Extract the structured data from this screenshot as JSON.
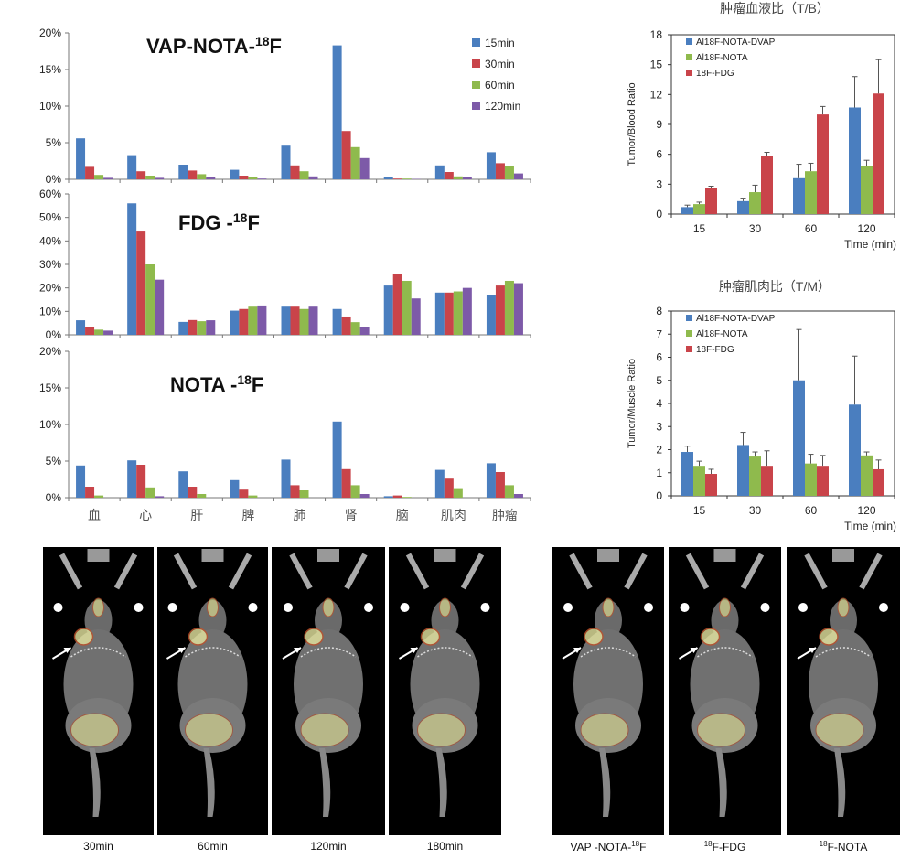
{
  "biodist": {
    "categories": [
      "血",
      "心",
      "肝",
      "脾",
      "肺",
      "肾",
      "脑",
      "肌肉",
      "肿瘤"
    ],
    "legend": [
      "15min",
      "30min",
      "60min",
      "120min"
    ],
    "colors": [
      "#4a7ebf",
      "#c9444a",
      "#8fba4d",
      "#7d5aa8"
    ],
    "charts": [
      {
        "title_main": "VAP-NOTA-",
        "title_sup": "18",
        "title_tail": "F",
        "yticks": [
          "0%",
          "5%",
          "10%",
          "15%",
          "20%"
        ],
        "ymax": 20,
        "series": [
          [
            5.6,
            3.3,
            2.0,
            1.3,
            4.6,
            18.3,
            0.3,
            1.9,
            3.7
          ],
          [
            1.7,
            1.1,
            1.2,
            0.5,
            1.9,
            6.6,
            0.1,
            1.0,
            2.2
          ],
          [
            0.6,
            0.5,
            0.7,
            0.3,
            1.1,
            4.4,
            0.1,
            0.4,
            1.8
          ],
          [
            0.2,
            0.2,
            0.3,
            0.1,
            0.4,
            2.9,
            0.05,
            0.3,
            0.8
          ]
        ]
      },
      {
        "title_main": "FDG -",
        "title_sup": "18",
        "title_tail": "F",
        "yticks": [
          "0%",
          "10%",
          "20%",
          "30%",
          "40%",
          "50%",
          "60%"
        ],
        "ymax": 60,
        "series": [
          [
            6.2,
            56,
            5.5,
            10.3,
            12,
            11,
            21,
            18,
            17
          ],
          [
            3.5,
            44,
            6.3,
            11,
            12,
            7.8,
            26,
            18,
            21
          ],
          [
            2.2,
            30,
            5.8,
            12,
            11,
            5.4,
            23,
            18.5,
            23
          ],
          [
            1.8,
            23.5,
            6.2,
            12.5,
            12,
            3.2,
            15.5,
            20,
            22
          ]
        ]
      },
      {
        "title_main": "NOTA -",
        "title_sup": "18",
        "title_tail": "F",
        "yticks": [
          "0%",
          "5%",
          "10%",
          "15%",
          "20%"
        ],
        "ymax": 20,
        "series": [
          [
            4.4,
            5.1,
            3.6,
            2.4,
            5.2,
            10.4,
            0.2,
            3.8,
            4.7
          ],
          [
            1.5,
            4.5,
            1.5,
            1.1,
            1.7,
            3.9,
            0.3,
            2.6,
            3.5
          ],
          [
            0.3,
            1.4,
            0.5,
            0.3,
            1.0,
            1.7,
            0.1,
            1.3,
            1.7
          ],
          [
            0,
            0.2,
            0,
            0,
            0,
            0.5,
            0,
            0,
            0.5
          ]
        ]
      }
    ]
  },
  "ratios": {
    "legend": [
      "Al18F-NOTA-DVAP",
      "Al18F-NOTA",
      "18F-FDG"
    ],
    "colors": [
      "#4a7ebf",
      "#8fba4d",
      "#c9444a"
    ],
    "categories": [
      "15",
      "30",
      "60",
      "120"
    ],
    "xunit": "Time (min)",
    "tb": {
      "title": "肿瘤血液比（T/B）",
      "ylabel": "Tumor/Blood Ratio",
      "yticks": [
        "0",
        "3",
        "6",
        "9",
        "12",
        "15",
        "18"
      ],
      "ymax": 18,
      "values": [
        [
          0.7,
          1.3,
          3.6,
          10.7
        ],
        [
          1.0,
          2.2,
          4.3,
          4.8
        ],
        [
          2.6,
          5.8,
          10.0,
          12.1
        ]
      ],
      "errors": [
        [
          0.2,
          0.3,
          1.4,
          3.1
        ],
        [
          0.2,
          0.7,
          0.8,
          0.6
        ],
        [
          0.2,
          0.4,
          0.8,
          3.4
        ]
      ]
    },
    "tm": {
      "title": "肿瘤肌肉比（T/M）",
      "ylabel": "Tumor/Muscle Ratio",
      "yticks": [
        "0",
        "1",
        "2",
        "3",
        "4",
        "5",
        "6",
        "7",
        "8"
      ],
      "ymax": 8,
      "values": [
        [
          1.9,
          2.2,
          5.0,
          3.95
        ],
        [
          1.3,
          1.7,
          1.4,
          1.75
        ],
        [
          0.95,
          1.3,
          1.3,
          1.15
        ]
      ],
      "errors": [
        [
          0.25,
          0.55,
          2.2,
          2.1
        ],
        [
          0.2,
          0.2,
          0.4,
          0.15
        ],
        [
          0.2,
          0.65,
          0.45,
          0.4
        ]
      ]
    }
  },
  "petct_time": {
    "labels": [
      "30min",
      "60min",
      "120min",
      "180min"
    ]
  },
  "petct_tracers": {
    "labels": [
      {
        "main": "VAP -NOTA-",
        "sup": "18",
        "tail": "F"
      },
      {
        "main": "",
        "sup": "18",
        "tail": "F-FDG"
      },
      {
        "main": "",
        "sup": "18",
        "tail": "F-NOTA"
      }
    ]
  }
}
